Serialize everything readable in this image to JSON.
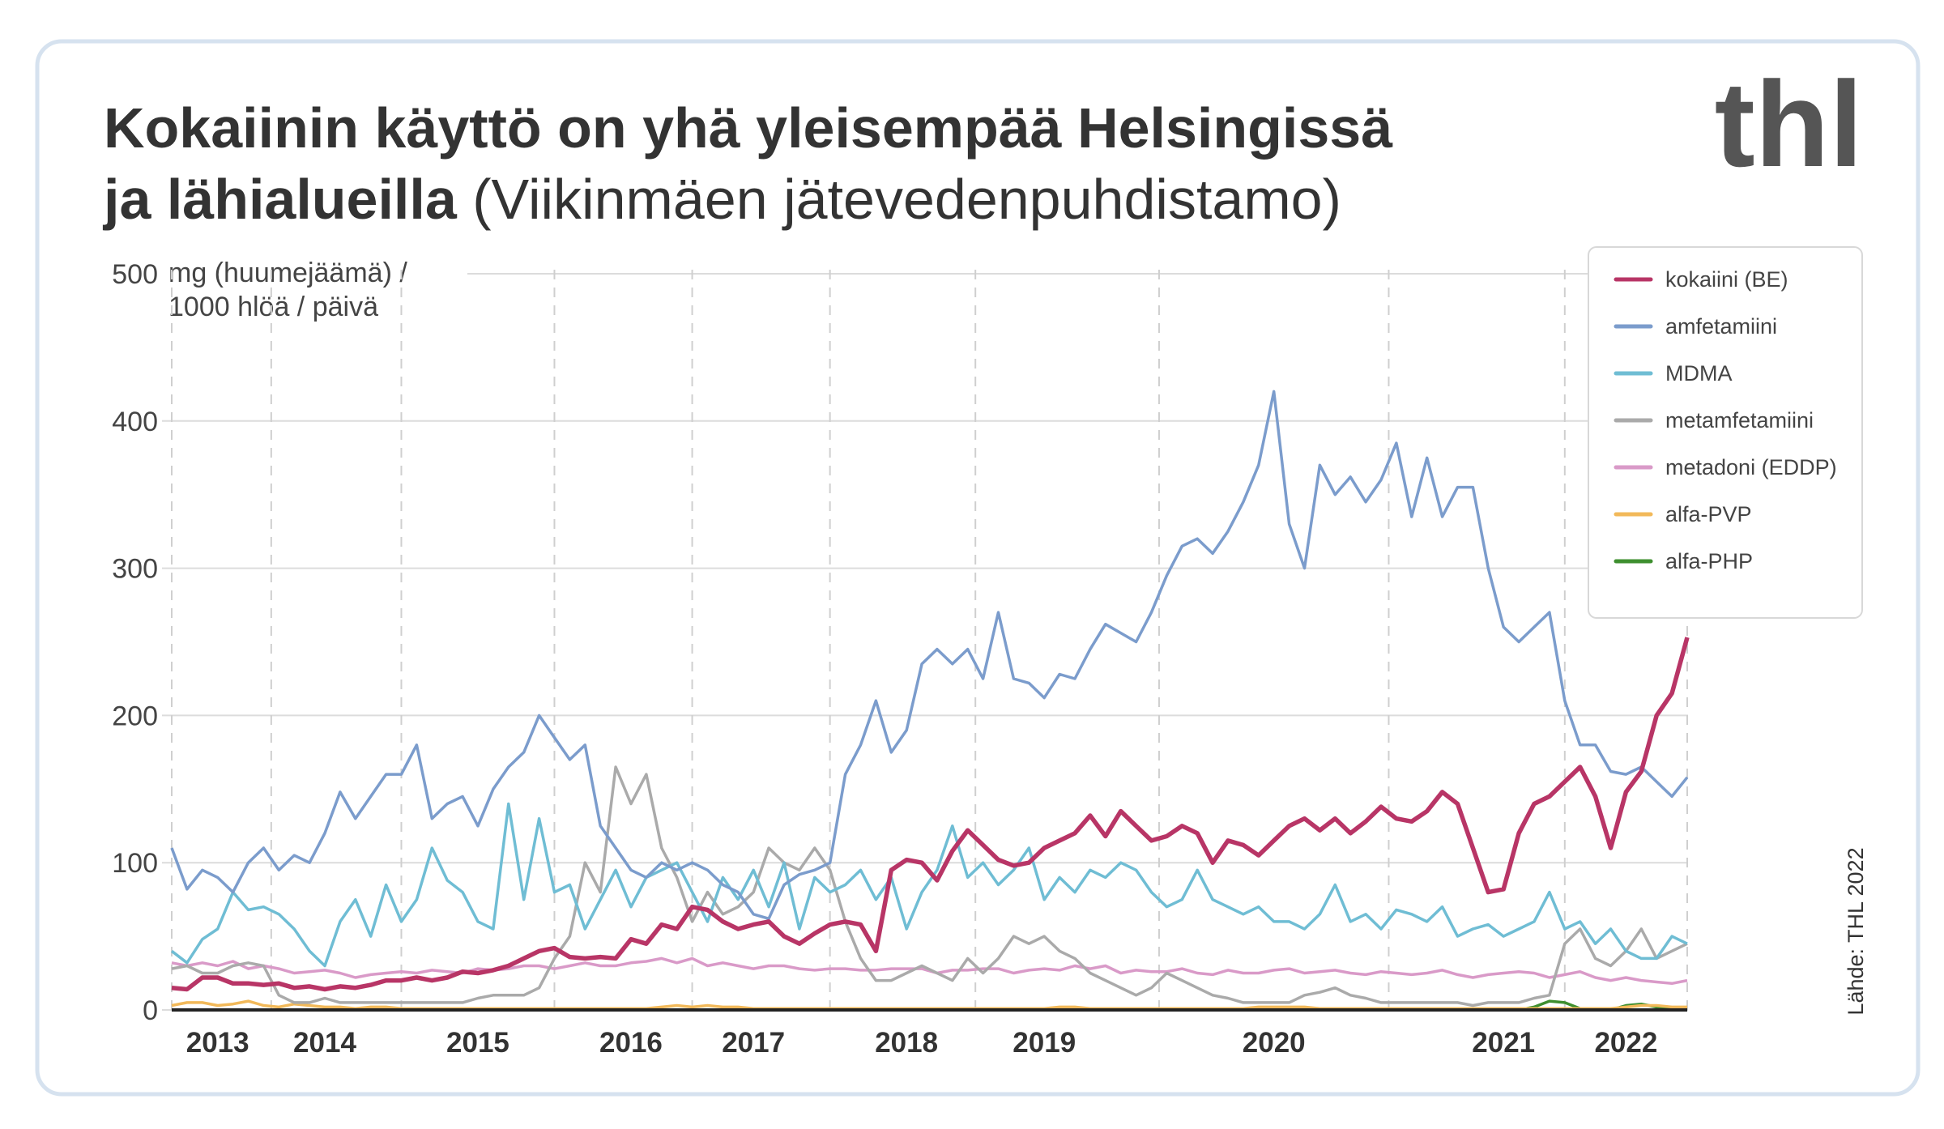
{
  "chart_data": {
    "type": "line",
    "title": [
      "Kokaiinin käyttö on yhä yleisempää Helsingissä",
      "ja lähialueilla"
    ],
    "subtitle": "(Viikinmäen jätevedenpuhdistamo)",
    "logo": "thl",
    "source": "Lähde: THL 2022",
    "y_label": [
      "mg (huumejäämä) /",
      "1000 hlöä / päivä"
    ],
    "ylim": [
      0,
      500
    ],
    "yticks": [
      0,
      100,
      200,
      300,
      400,
      500
    ],
    "grid": true,
    "legend": "top-right",
    "categories": [
      null,
      null,
      null,
      "2013",
      null,
      null,
      null,
      null,
      null,
      null,
      "2014",
      null,
      null,
      null,
      null,
      null,
      null,
      null,
      null,
      null,
      "2015",
      null,
      null,
      null,
      null,
      null,
      null,
      null,
      null,
      null,
      "2016",
      null,
      null,
      null,
      null,
      null,
      null,
      null,
      "2017",
      null,
      null,
      null,
      null,
      null,
      null,
      null,
      null,
      null,
      "2018",
      null,
      null,
      null,
      null,
      null,
      null,
      null,
      null,
      "2019",
      null,
      null,
      null,
      null,
      null,
      null,
      null,
      null,
      null,
      null,
      null,
      null,
      null,
      null,
      "2020",
      null,
      null,
      null,
      null,
      null,
      null,
      null,
      null,
      null,
      null,
      null,
      null,
      null,
      null,
      "2021",
      null,
      null,
      null,
      null,
      null,
      null,
      null,
      "2022",
      null,
      null,
      null,
      null
    ],
    "series": [
      {
        "name": "kokaiini (BE)",
        "color": "#b83566",
        "values": [
          15,
          14,
          22,
          22,
          18,
          18,
          17,
          18,
          15,
          16,
          14,
          16,
          15,
          17,
          20,
          20,
          22,
          20,
          22,
          26,
          25,
          27,
          30,
          35,
          40,
          42,
          36,
          35,
          36,
          35,
          48,
          45,
          58,
          55,
          70,
          68,
          60,
          55,
          58,
          60,
          50,
          45,
          52,
          58,
          60,
          58,
          40,
          95,
          102,
          100,
          88,
          108,
          122,
          112,
          102,
          98,
          100,
          110,
          115,
          120,
          132,
          118,
          135,
          125,
          115,
          118,
          125,
          120,
          100,
          115,
          112,
          105,
          115,
          125,
          130,
          122,
          130,
          120,
          128,
          138,
          130,
          128,
          135,
          148,
          140,
          110,
          80,
          82,
          120,
          140,
          145,
          155,
          165,
          145,
          110,
          148,
          162,
          200,
          215,
          253
        ]
      },
      {
        "name": "amfetamiini",
        "color": "#7b9ccc",
        "values": [
          110,
          82,
          95,
          90,
          80,
          100,
          110,
          95,
          105,
          100,
          120,
          148,
          130,
          145,
          160,
          160,
          180,
          130,
          140,
          145,
          125,
          150,
          165,
          175,
          200,
          185,
          170,
          180,
          125,
          110,
          95,
          90,
          100,
          95,
          100,
          95,
          85,
          80,
          65,
          62,
          85,
          92,
          95,
          100,
          160,
          180,
          210,
          175,
          190,
          235,
          245,
          235,
          245,
          225,
          270,
          225,
          222,
          212,
          228,
          225,
          245,
          262,
          256,
          250,
          270,
          295,
          315,
          320,
          310,
          325,
          345,
          370,
          420,
          330,
          300,
          370,
          350,
          362,
          345,
          360,
          385,
          335,
          375,
          335,
          355,
          355,
          300,
          260,
          250,
          260,
          270,
          210,
          180,
          180,
          162,
          160,
          165,
          155,
          145,
          158
        ]
      },
      {
        "name": "MDMA",
        "color": "#6fbdd4",
        "values": [
          40,
          32,
          48,
          55,
          80,
          68,
          70,
          65,
          55,
          40,
          30,
          60,
          75,
          50,
          85,
          60,
          75,
          110,
          88,
          80,
          60,
          55,
          140,
          75,
          130,
          80,
          85,
          55,
          75,
          95,
          70,
          90,
          95,
          100,
          80,
          60,
          90,
          75,
          95,
          70,
          100,
          55,
          90,
          80,
          85,
          95,
          75,
          90,
          55,
          80,
          95,
          125,
          90,
          100,
          85,
          95,
          110,
          75,
          90,
          80,
          95,
          90,
          100,
          95,
          80,
          70,
          75,
          95,
          75,
          70,
          65,
          70,
          60,
          60,
          55,
          65,
          85,
          60,
          65,
          55,
          68,
          65,
          60,
          70,
          50,
          55,
          58,
          50,
          55,
          60,
          80,
          55,
          60,
          45,
          55,
          40,
          35,
          35,
          50,
          45
        ]
      },
      {
        "name": "metamfetamiini",
        "color": "#aaaaaa",
        "values": [
          28,
          30,
          25,
          25,
          30,
          32,
          30,
          10,
          5,
          5,
          8,
          5,
          5,
          5,
          5,
          5,
          5,
          5,
          5,
          5,
          8,
          10,
          10,
          10,
          15,
          35,
          50,
          100,
          80,
          165,
          140,
          160,
          110,
          90,
          60,
          80,
          65,
          70,
          80,
          110,
          100,
          95,
          110,
          95,
          60,
          35,
          20,
          20,
          25,
          30,
          25,
          20,
          35,
          25,
          35,
          50,
          45,
          50,
          40,
          35,
          25,
          20,
          15,
          10,
          15,
          25,
          20,
          15,
          10,
          8,
          5,
          5,
          5,
          5,
          10,
          12,
          15,
          10,
          8,
          5,
          5,
          5,
          5,
          5,
          5,
          3,
          5,
          5,
          5,
          8,
          10,
          45,
          55,
          35,
          30,
          40,
          55,
          35,
          40,
          45
        ]
      },
      {
        "name": "metadoni (EDDP)",
        "color": "#d99ac8",
        "values": [
          32,
          30,
          32,
          30,
          33,
          28,
          30,
          28,
          25,
          26,
          27,
          25,
          22,
          24,
          25,
          26,
          25,
          27,
          26,
          25,
          28,
          27,
          28,
          30,
          30,
          28,
          30,
          32,
          30,
          30,
          32,
          33,
          35,
          32,
          35,
          30,
          32,
          30,
          28,
          30,
          30,
          28,
          27,
          28,
          28,
          27,
          27,
          28,
          28,
          28,
          25,
          27,
          27,
          28,
          28,
          25,
          27,
          28,
          27,
          30,
          28,
          30,
          25,
          27,
          26,
          26,
          28,
          25,
          24,
          27,
          25,
          25,
          27,
          28,
          25,
          26,
          27,
          25,
          24,
          26,
          25,
          24,
          25,
          27,
          24,
          22,
          24,
          25,
          26,
          25,
          22,
          24,
          26,
          22,
          20,
          22,
          20,
          19,
          18,
          20
        ]
      },
      {
        "name": "alfa-PVP",
        "color": "#f2b95a",
        "values": [
          3,
          5,
          5,
          3,
          4,
          6,
          3,
          2,
          4,
          3,
          2,
          2,
          1,
          2,
          2,
          1,
          1,
          1,
          1,
          1,
          1,
          1,
          1,
          1,
          1,
          1,
          1,
          1,
          1,
          1,
          1,
          1,
          2,
          3,
          2,
          3,
          2,
          2,
          1,
          1,
          1,
          1,
          1,
          1,
          1,
          1,
          1,
          1,
          1,
          1,
          1,
          1,
          1,
          1,
          1,
          1,
          1,
          1,
          2,
          2,
          1,
          1,
          1,
          1,
          1,
          1,
          1,
          1,
          1,
          1,
          1,
          2,
          2,
          2,
          2,
          1,
          1,
          1,
          1,
          1,
          1,
          1,
          1,
          1,
          1,
          1,
          1,
          1,
          1,
          1,
          1,
          1,
          1,
          1,
          1,
          2,
          3,
          3,
          2,
          2
        ]
      },
      {
        "name": "alfa-PHP",
        "color": "#3e8f2f",
        "values": [
          0,
          0,
          0,
          0,
          0,
          0,
          0,
          0,
          0,
          0,
          0,
          0,
          0,
          0,
          0,
          0,
          0,
          0,
          0,
          0,
          0,
          0,
          0,
          0,
          0,
          0,
          0,
          0,
          0,
          0,
          0,
          0,
          0,
          0,
          0,
          0,
          0,
          0,
          0,
          0,
          0,
          0,
          0,
          0,
          0,
          0,
          0,
          0,
          0,
          0,
          0,
          0,
          0,
          0,
          0,
          0,
          0,
          0,
          0,
          0,
          0,
          0,
          0,
          0,
          0,
          0,
          0,
          0,
          0,
          0,
          0,
          0,
          0,
          0,
          0,
          0,
          0,
          0,
          0,
          0,
          0,
          0,
          0,
          0,
          0,
          0,
          0,
          0,
          0,
          2,
          6,
          5,
          1,
          0,
          0,
          3,
          4,
          2,
          1,
          1
        ]
      }
    ]
  }
}
